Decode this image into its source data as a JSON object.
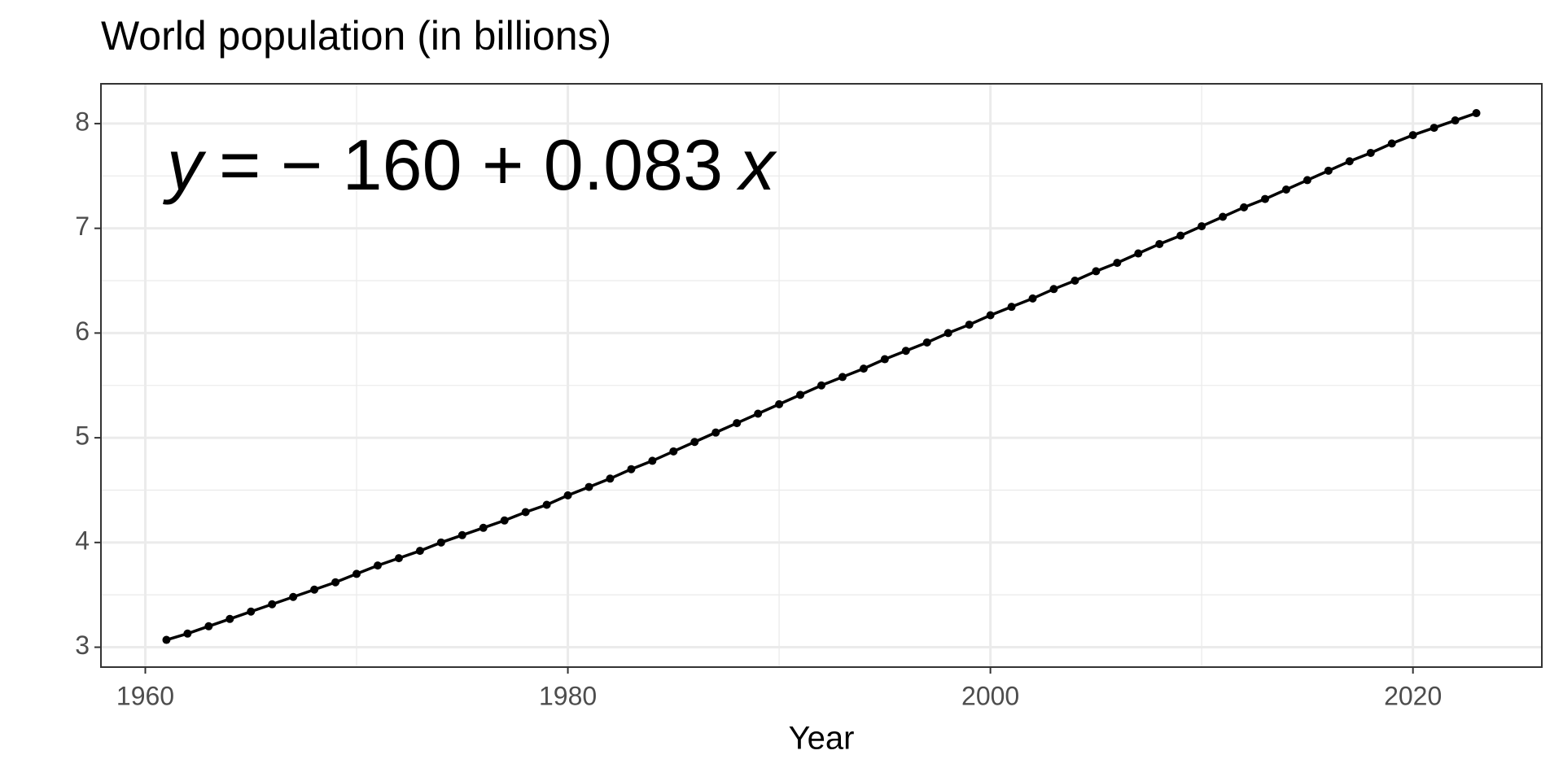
{
  "chart_data": {
    "type": "line",
    "title": "World population (in billions)",
    "x_label": "Year",
    "annotation": {
      "lhs": "y",
      "rhs": "= − 160 + 0.083",
      "var": "x"
    },
    "x": [
      1961,
      1962,
      1963,
      1964,
      1965,
      1966,
      1967,
      1968,
      1969,
      1970,
      1971,
      1972,
      1973,
      1974,
      1975,
      1976,
      1977,
      1978,
      1979,
      1980,
      1981,
      1982,
      1983,
      1984,
      1985,
      1986,
      1987,
      1988,
      1989,
      1990,
      1991,
      1992,
      1993,
      1994,
      1995,
      1996,
      1997,
      1998,
      1999,
      2000,
      2001,
      2002,
      2003,
      2004,
      2005,
      2006,
      2007,
      2008,
      2009,
      2010,
      2011,
      2012,
      2013,
      2014,
      2015,
      2016,
      2017,
      2018,
      2019,
      2020,
      2021,
      2022,
      2023
    ],
    "series": [
      {
        "color": "#000000",
        "values": [
          3.07,
          3.13,
          3.2,
          3.27,
          3.34,
          3.41,
          3.48,
          3.55,
          3.62,
          3.7,
          3.78,
          3.85,
          3.92,
          4.0,
          4.07,
          4.14,
          4.21,
          4.29,
          4.36,
          4.45,
          4.53,
          4.61,
          4.7,
          4.78,
          4.87,
          4.96,
          5.05,
          5.14,
          5.23,
          5.32,
          5.41,
          5.5,
          5.58,
          5.66,
          5.75,
          5.83,
          5.91,
          6.0,
          6.08,
          6.17,
          6.25,
          6.33,
          6.42,
          6.5,
          6.59,
          6.67,
          6.76,
          6.85,
          6.93,
          7.02,
          7.11,
          7.2,
          7.28,
          7.37,
          7.46,
          7.55,
          7.64,
          7.72,
          7.81,
          7.89,
          7.96,
          8.03,
          8.1
        ]
      }
    ],
    "xlim": [
      1957.9,
      2026.1
    ],
    "xticks": [
      1960,
      1980,
      2000,
      2020
    ],
    "xminorticks": [
      1970,
      1990,
      2010
    ],
    "ylim": [
      2.81,
      8.38
    ],
    "yticks": [
      3,
      4,
      5,
      6,
      7,
      8
    ],
    "yminorticks": [
      3.5,
      4.5,
      5.5,
      6.5,
      7.5
    ],
    "grid": true
  }
}
